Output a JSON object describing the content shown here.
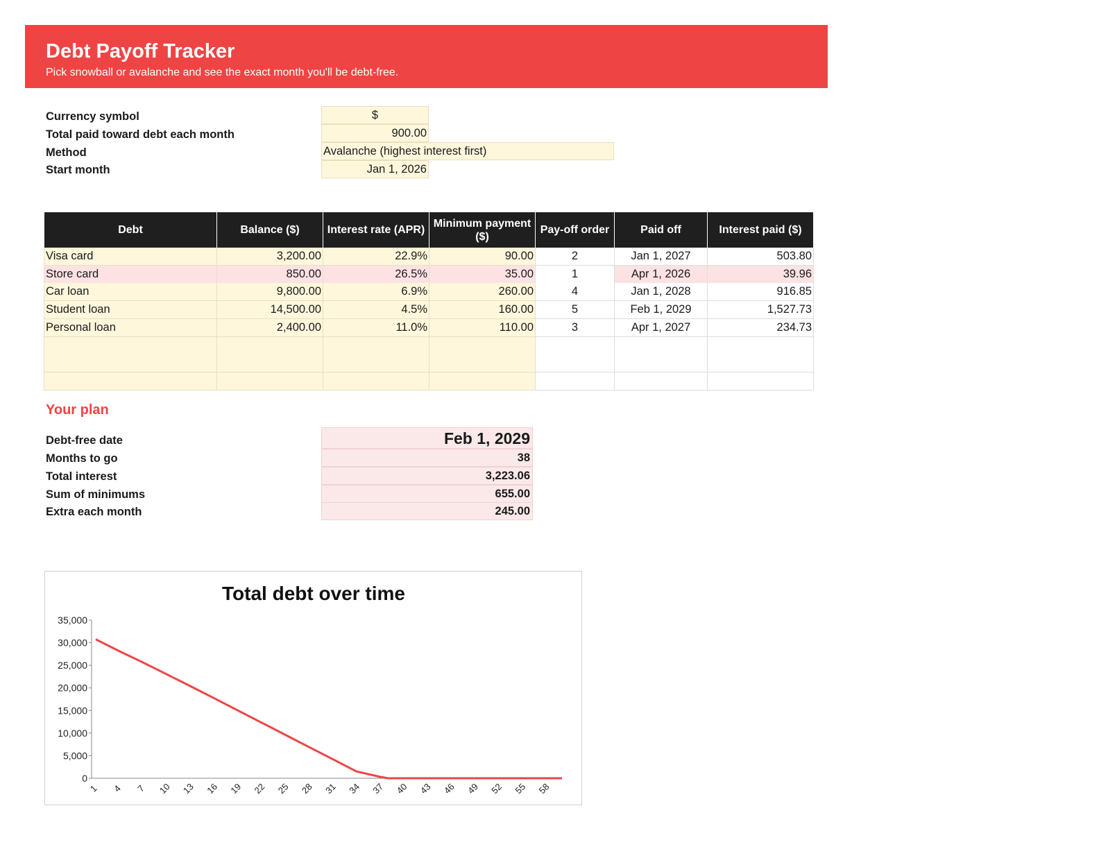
{
  "header": {
    "title": "Debt Payoff Tracker",
    "subtitle": "Pick snowball or avalanche and see the exact month you'll be debt-free."
  },
  "settings": [
    {
      "label": "Currency symbol",
      "value": "$"
    },
    {
      "label": "Total paid toward debt each month",
      "value": "900.00"
    },
    {
      "label": "Method",
      "value": "Avalanche (highest interest first)"
    },
    {
      "label": "Start month",
      "value": "Jan 1, 2026"
    }
  ],
  "table": {
    "headers": [
      "Debt",
      "Balance ($)",
      "Interest rate (APR)",
      "Minimum payment ($)",
      "Pay-off order",
      "Paid off",
      "Interest paid ($)"
    ],
    "rows": [
      [
        "Visa card",
        "3,200.00",
        "22.9%",
        "90.00",
        "2",
        "Jan 1, 2027",
        "503.80"
      ],
      [
        "Store card",
        "850.00",
        "26.5%",
        "35.00",
        "1",
        "Apr 1, 2026",
        "39.96"
      ],
      [
        "Car loan",
        "9,800.00",
        "6.9%",
        "260.00",
        "4",
        "Jan 1, 2028",
        "916.85"
      ],
      [
        "Student loan",
        "14,500.00",
        "4.5%",
        "160.00",
        "5",
        "Feb 1, 2029",
        "1,527.73"
      ],
      [
        "Personal loan",
        "2,400.00",
        "11.0%",
        "110.00",
        "3",
        "Apr 1, 2027",
        "234.73"
      ],
      [
        "",
        "",
        "",
        "",
        "",
        "",
        ""
      ],
      [
        "",
        "",
        "",
        "",
        "",
        "",
        ""
      ],
      [
        "",
        "",
        "",
        "",
        "",
        "",
        ""
      ]
    ],
    "highlight_row": 1,
    "colors": {
      "header_bg": "#1f1f1f",
      "input_bg": "#fef7dc",
      "highlight_bg": "#fde2e4"
    }
  },
  "plan": {
    "heading": "Your plan",
    "items": [
      {
        "label": "Debt-free date",
        "value": "Feb 1, 2029"
      },
      {
        "label": "Months to go",
        "value": "38"
      },
      {
        "label": "Total interest",
        "value": "3,223.06"
      },
      {
        "label": "Sum of minimums",
        "value": "655.00"
      },
      {
        "label": "Extra each month",
        "value": "245.00"
      }
    ]
  },
  "accent_color": "#ef4444",
  "chart_data": {
    "type": "line",
    "title": "Total debt over time",
    "xlabel": "",
    "ylabel": "",
    "ylim": [
      0,
      35000
    ],
    "yticks": [
      "0",
      "5,000",
      "10,000",
      "15,000",
      "20,000",
      "25,000",
      "30,000",
      "35,000"
    ],
    "xticks": [
      "1",
      "4",
      "7",
      "10",
      "13",
      "16",
      "19",
      "22",
      "25",
      "28",
      "31",
      "34",
      "37",
      "40",
      "43",
      "46",
      "49",
      "52",
      "55",
      "58"
    ],
    "x_range": [
      1,
      60
    ],
    "series": [
      {
        "color": "#ef4444",
        "points": [
          [
            1,
            30750
          ],
          [
            4,
            28100
          ],
          [
            7,
            25600
          ],
          [
            10,
            23000
          ],
          [
            13,
            20350
          ],
          [
            16,
            17700
          ],
          [
            19,
            15000
          ],
          [
            22,
            12300
          ],
          [
            25,
            9600
          ],
          [
            28,
            6900
          ],
          [
            31,
            4200
          ],
          [
            34,
            1500
          ],
          [
            37,
            300
          ],
          [
            38,
            0
          ],
          [
            40,
            0
          ],
          [
            60,
            0
          ]
        ]
      }
    ],
    "grid": false,
    "legend": "none"
  }
}
